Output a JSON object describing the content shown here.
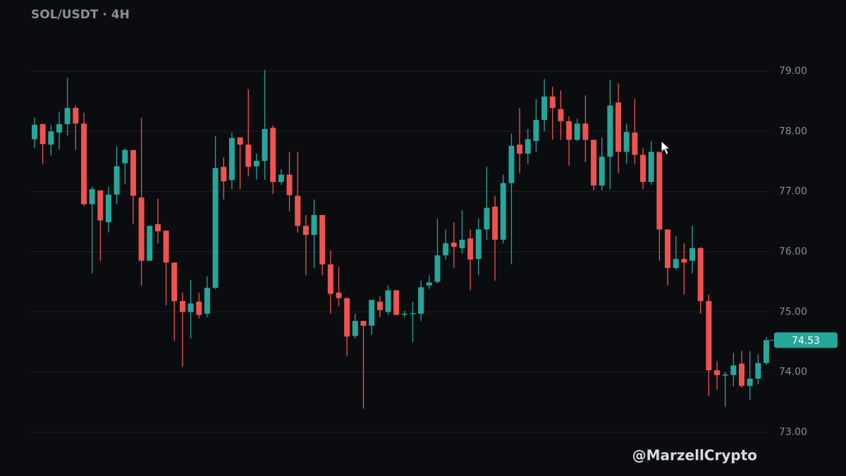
{
  "chart_data": {
    "type": "candlestick",
    "title": "SOL/USDT · 4H",
    "watermark": "@MarzellCrypto",
    "up_color": "#26a69a",
    "down_color": "#ef5350",
    "grid": true,
    "ylim": [
      72.3,
      79.9
    ],
    "yticks": [
      {
        "value": 73,
        "label": "73.00"
      },
      {
        "value": 74,
        "label": "74.00"
      },
      {
        "value": 75,
        "label": "75.00"
      },
      {
        "value": 76,
        "label": "76.00"
      },
      {
        "value": 77,
        "label": "77.00"
      },
      {
        "value": 78,
        "label": "78.00"
      },
      {
        "value": 79,
        "label": "79.00"
      }
    ],
    "open": [
      77.87,
      78.12,
      77.78,
      77.98,
      78.12,
      78.39,
      78.13,
      76.79,
      77.02,
      76.49,
      76.95,
      77.47,
      77.69,
      76.9,
      75.85,
      76.46,
      76.35,
      75.82,
      75.18,
      75.0,
      75.17,
      74.97,
      75.4,
      77.41,
      77.19,
      77.9,
      77.78,
      77.42,
      77.51,
      78.06,
      77.16,
      77.28,
      76.93,
      76.43,
      76.28,
      76.61,
      75.79,
      75.32,
      75.23,
      74.6,
      74.85,
      74.77,
      75.17,
      75.0,
      75.36,
      74.96,
      74.97,
      74.97,
      75.44,
      75.5,
      75.94,
      76.15,
      76.06,
      76.22,
      75.88,
      76.37,
      76.75,
      76.2,
      77.14,
      77.78,
      77.63,
      77.84,
      78.19,
      78.58,
      78.37,
      78.17,
      77.86,
      78.13,
      77.86,
      77.1,
      77.58,
      78.48,
      77.66,
      77.98,
      77.61,
      77.16,
      77.66,
      76.37,
      75.73,
      75.88,
      75.85,
      76.06,
      75.18,
      74.03,
      73.95,
      73.95,
      74.14,
      73.77,
      73.89,
      74.15
    ],
    "high": [
      78.23,
      78.13,
      78.11,
      78.33,
      78.89,
      78.43,
      78.31,
      77.08,
      77.02,
      77.08,
      77.75,
      77.72,
      77.69,
      78.23,
      76.43,
      76.88,
      76.35,
      75.82,
      75.32,
      75.53,
      75.32,
      75.59,
      77.92,
      77.57,
      77.98,
      77.9,
      78.7,
      77.63,
      79.02,
      78.1,
      77.37,
      77.66,
      77.66,
      76.61,
      76.87,
      76.61,
      76.02,
      75.75,
      75.23,
      74.97,
      74.85,
      75.2,
      75.26,
      75.44,
      75.36,
      75.02,
      75.17,
      75.52,
      75.61,
      76.55,
      76.37,
      76.49,
      76.69,
      76.37,
      76.55,
      77.41,
      76.93,
      77.28,
      77.96,
      78.39,
      78.04,
      78.54,
      78.87,
      78.74,
      78.68,
      78.25,
      78.21,
      78.6,
      77.86,
      77.9,
      78.86,
      78.8,
      78.13,
      78.54,
      77.72,
      77.84,
      77.66,
      76.37,
      76.26,
      76.14,
      76.43,
      76.08,
      75.29,
      74.18,
      74.0,
      74.32,
      74.35,
      74.35,
      74.29,
      74.58
    ],
    "low": [
      77.72,
      77.46,
      77.6,
      77.7,
      77.93,
      77.69,
      76.76,
      75.64,
      75.85,
      76.32,
      76.79,
      77.12,
      76.46,
      75.44,
      75.85,
      76.14,
      75.11,
      74.52,
      74.09,
      74.56,
      74.89,
      74.91,
      75.38,
      76.87,
      77.04,
      77.04,
      77.25,
      77.2,
      77.2,
      76.96,
      77.11,
      76.67,
      76.32,
      75.61,
      75.73,
      75.61,
      74.97,
      75.09,
      74.27,
      74.56,
      73.39,
      74.62,
      74.91,
      74.95,
      74.95,
      74.91,
      74.5,
      74.85,
      75.38,
      75.47,
      75.87,
      75.73,
      75.97,
      75.36,
      75.61,
      76.2,
      75.52,
      76.14,
      75.79,
      77.31,
      77.46,
      77.66,
      78.0,
      77.86,
      77.86,
      77.43,
      77.84,
      77.49,
      77.02,
      77.02,
      77.04,
      77.31,
      77.46,
      77.46,
      77.04,
      77.11,
      75.85,
      75.44,
      75.7,
      75.29,
      75.64,
      74.97,
      73.6,
      73.71,
      73.42,
      73.76,
      73.74,
      73.54,
      73.8,
      74.12
    ],
    "close": [
      78.11,
      77.79,
      78.0,
      78.12,
      78.39,
      78.13,
      76.79,
      77.04,
      76.52,
      76.95,
      77.42,
      77.69,
      76.93,
      75.85,
      76.43,
      76.34,
      75.82,
      75.18,
      75.0,
      75.14,
      74.95,
      75.4,
      77.39,
      77.17,
      77.89,
      77.78,
      77.41,
      77.51,
      78.04,
      77.16,
      77.28,
      76.94,
      76.43,
      76.28,
      76.61,
      75.79,
      75.3,
      75.23,
      74.59,
      74.85,
      74.77,
      75.2,
      75.03,
      75.36,
      74.95,
      74.97,
      74.98,
      75.41,
      75.49,
      75.94,
      76.14,
      76.08,
      76.2,
      75.87,
      76.37,
      76.73,
      76.2,
      77.14,
      77.76,
      77.63,
      77.87,
      78.19,
      78.58,
      78.39,
      78.17,
      77.86,
      78.13,
      77.86,
      77.1,
      77.58,
      78.43,
      77.66,
      77.99,
      77.61,
      77.16,
      77.66,
      76.37,
      75.73,
      75.88,
      75.82,
      76.06,
      75.18,
      74.03,
      73.95,
      73.96,
      74.11,
      73.77,
      73.89,
      74.15,
      74.53
    ]
  }
}
